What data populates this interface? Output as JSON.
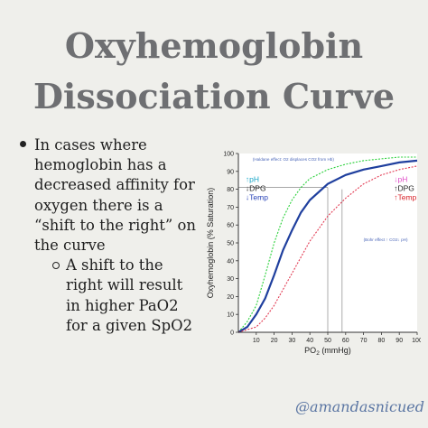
{
  "header": {
    "title_line1": "Oxyhemoglobin",
    "title_line2": "Dissociation Curve"
  },
  "bullets": {
    "main_lines": [
      "In cases where",
      "hemoglobin has a",
      "decreased affinity for",
      "oxygen there is a",
      "“shift to the right” on",
      "the curve"
    ],
    "sub_lines": [
      "A shift to the",
      "right will result",
      "in higher PaO2",
      "for a given SpO2"
    ]
  },
  "footer": {
    "handle": "@amandasnicued"
  },
  "colors": {
    "background": "#efefeb",
    "title": "#6e6f72",
    "curve_normal": "#1f3f9e",
    "curve_left": "#2bd13b",
    "curve_right": "#e23a52",
    "handle": "#5b76a3"
  },
  "chart_data": {
    "type": "line",
    "ylabel": "Oxyhemoglobin (% Saturation)",
    "xlabel_main": "PO",
    "xlabel_sub": "2",
    "xlabel_unit": " (mmHg)",
    "xlim": [
      0,
      100
    ],
    "ylim": [
      0,
      100
    ],
    "xticks": [
      10,
      20,
      30,
      40,
      50,
      60,
      70,
      80,
      90,
      100
    ],
    "yticks": [
      0,
      10,
      20,
      30,
      40,
      50,
      60,
      70,
      80,
      90,
      100
    ],
    "grid": false,
    "series": [
      {
        "style": "dotted",
        "color": "#2bd13b",
        "x": [
          0,
          5,
          10,
          15,
          20,
          25,
          30,
          35,
          40,
          50,
          60,
          70,
          80,
          90,
          100
        ],
        "y": [
          0,
          6,
          15,
          32,
          50,
          64,
          74,
          81,
          86,
          91,
          94,
          96,
          97,
          98,
          98
        ]
      },
      {
        "style": "solid",
        "color": "#1f3f9e",
        "x": [
          0,
          5,
          10,
          15,
          20,
          25,
          30,
          35,
          40,
          50,
          60,
          70,
          80,
          90,
          100
        ],
        "y": [
          0,
          3,
          10,
          19,
          32,
          46,
          57,
          67,
          74,
          83,
          88,
          91,
          93,
          95,
          96
        ]
      },
      {
        "style": "dotted",
        "color": "#e23a52",
        "x": [
          0,
          10,
          15,
          20,
          25,
          30,
          35,
          40,
          45,
          50,
          60,
          70,
          80,
          90,
          100
        ],
        "y": [
          0,
          3,
          8,
          15,
          24,
          33,
          42,
          51,
          58,
          65,
          75,
          83,
          88,
          91,
          93
        ]
      }
    ],
    "reference_lines": [
      {
        "orientation": "vertical",
        "x": 50,
        "y_top": 81
      },
      {
        "orientation": "vertical",
        "x": 58,
        "y_top": 80
      },
      {
        "orientation": "horizontal",
        "y": 81,
        "x_right": 50
      }
    ],
    "annotations": {
      "haldane_note": "(Haldane effect: O2 displaces CO2 from Hb)",
      "bohr_note": "(Bohr effect ↑ CO2↓ pH)",
      "left_labels": [
        {
          "arrow": "↑",
          "text": "pH",
          "color": "#1aa6c7"
        },
        {
          "arrow": "↓",
          "text": "DPG",
          "color": "#222222"
        },
        {
          "arrow": "↓",
          "text": "Temp",
          "color": "#2a45b8"
        }
      ],
      "right_labels": [
        {
          "arrow": "↓",
          "text": "pH",
          "color": "#e04fc8"
        },
        {
          "arrow": "↑",
          "text": "DPG",
          "color": "#222222"
        },
        {
          "arrow": "↑",
          "text": "Temp",
          "color": "#d8232a"
        }
      ]
    }
  }
}
